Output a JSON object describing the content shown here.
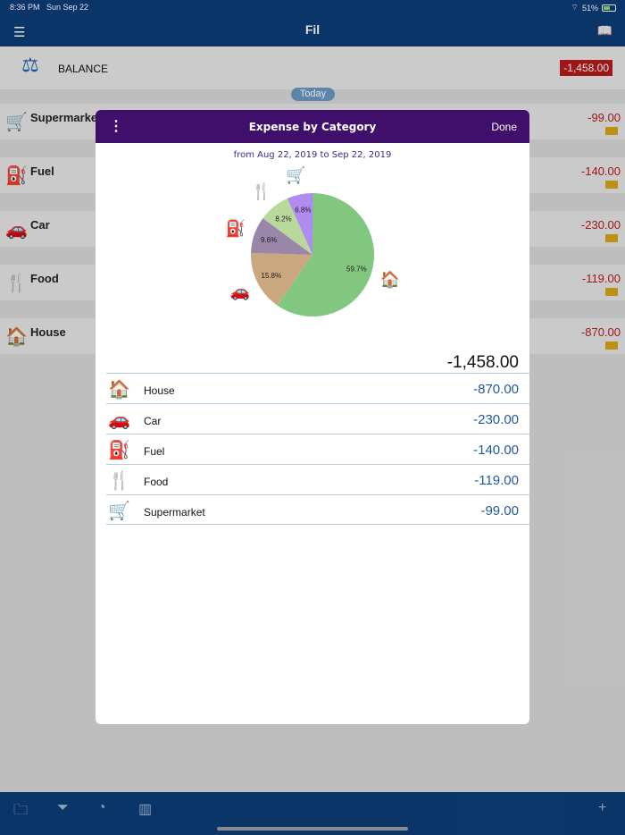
{
  "status": {
    "time": "8:36 PM",
    "date": "Sun Sep 22",
    "wifi_icon": "wifi-icon",
    "battery": "51%"
  },
  "nav": {
    "title": "Fil",
    "menu_icon": "menu-icon",
    "book_icon": "book-icon"
  },
  "background": {
    "balance_label": "BALANCE",
    "balance_amount": "-1,458.00",
    "today_label": "Today",
    "items": [
      {
        "name": "Supermarket",
        "amount": "-99.00"
      },
      {
        "name": "Fuel",
        "amount": "-140.00"
      },
      {
        "name": "Car",
        "amount": "-230.00"
      },
      {
        "name": "Food",
        "amount": "-119.00"
      },
      {
        "name": "House",
        "amount": "-870.00"
      }
    ]
  },
  "modal": {
    "title": "Expense by Category",
    "done_label": "Done",
    "range_text": "from Aug 22, 2019 to Sep 22, 2019",
    "total": "-1,458.00",
    "rows": [
      {
        "name": "House",
        "amount": "-870.00",
        "icon": "house-icon"
      },
      {
        "name": "Car",
        "amount": "-230.00",
        "icon": "car-icon"
      },
      {
        "name": "Fuel",
        "amount": "-140.00",
        "icon": "fuel-icon"
      },
      {
        "name": "Food",
        "amount": "-119.00",
        "icon": "food-icon"
      },
      {
        "name": "Supermarket",
        "amount": "-99.00",
        "icon": "cart-icon"
      }
    ]
  },
  "chart_data": {
    "type": "pie",
    "slices": [
      {
        "label": "House",
        "pct": 59.7,
        "color": "#82c77f",
        "icon": "house-icon"
      },
      {
        "label": "Car",
        "pct": 15.8,
        "color": "#c9a77f",
        "icon": "car-icon"
      },
      {
        "label": "Fuel",
        "pct": 9.6,
        "color": "#9a86a9",
        "icon": "fuel-icon"
      },
      {
        "label": "Food",
        "pct": 8.2,
        "color": "#b9d99a",
        "icon": "food-icon"
      },
      {
        "label": "Supermarket",
        "pct": 6.8,
        "color": "#b18cf0",
        "icon": "cart-icon"
      }
    ],
    "value_labels": [
      "59.7%",
      "15.8%",
      "9.6%",
      "8.2%",
      "6.8%"
    ]
  },
  "tabbar": {
    "icons": [
      "folder-icon",
      "filter-icon",
      "pie-chart-icon",
      "bar-chart-icon",
      "plus-icon"
    ]
  }
}
